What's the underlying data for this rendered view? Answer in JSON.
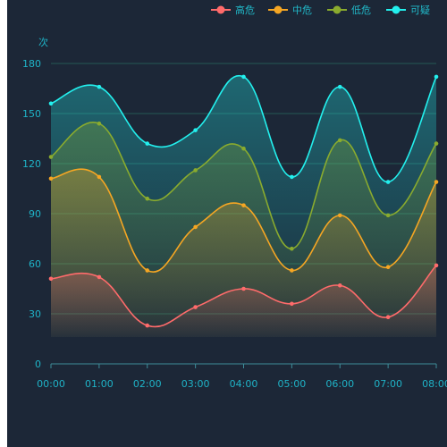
{
  "chart_data": {
    "type": "line",
    "smooth": true,
    "area": true,
    "title": "",
    "xlabel": "",
    "ylabel": "次",
    "ylim": [
      0,
      180
    ],
    "yticks": [
      0,
      30,
      60,
      90,
      120,
      150,
      180
    ],
    "categories": [
      "00:00",
      "01:00",
      "02:00",
      "03:00",
      "04:00",
      "05:00",
      "06:00",
      "07:00",
      "08:00"
    ],
    "legend": "top-right",
    "grid": true,
    "series": [
      {
        "name": "高危",
        "color": "#ff6b6b",
        "values": [
          51,
          52,
          23,
          34,
          45,
          36,
          47,
          28,
          59
        ]
      },
      {
        "name": "中危",
        "color": "#f5a623",
        "values": [
          111,
          112,
          56,
          82,
          95,
          56,
          89,
          58,
          109
        ]
      },
      {
        "name": "低危",
        "color": "#8aab2e",
        "values": [
          124,
          144,
          99,
          116,
          129,
          69,
          134,
          89,
          132
        ]
      },
      {
        "name": "可疑",
        "color": "#23f0ee",
        "values": [
          156,
          166,
          132,
          140,
          172,
          112,
          166,
          109,
          172
        ]
      }
    ]
  }
}
